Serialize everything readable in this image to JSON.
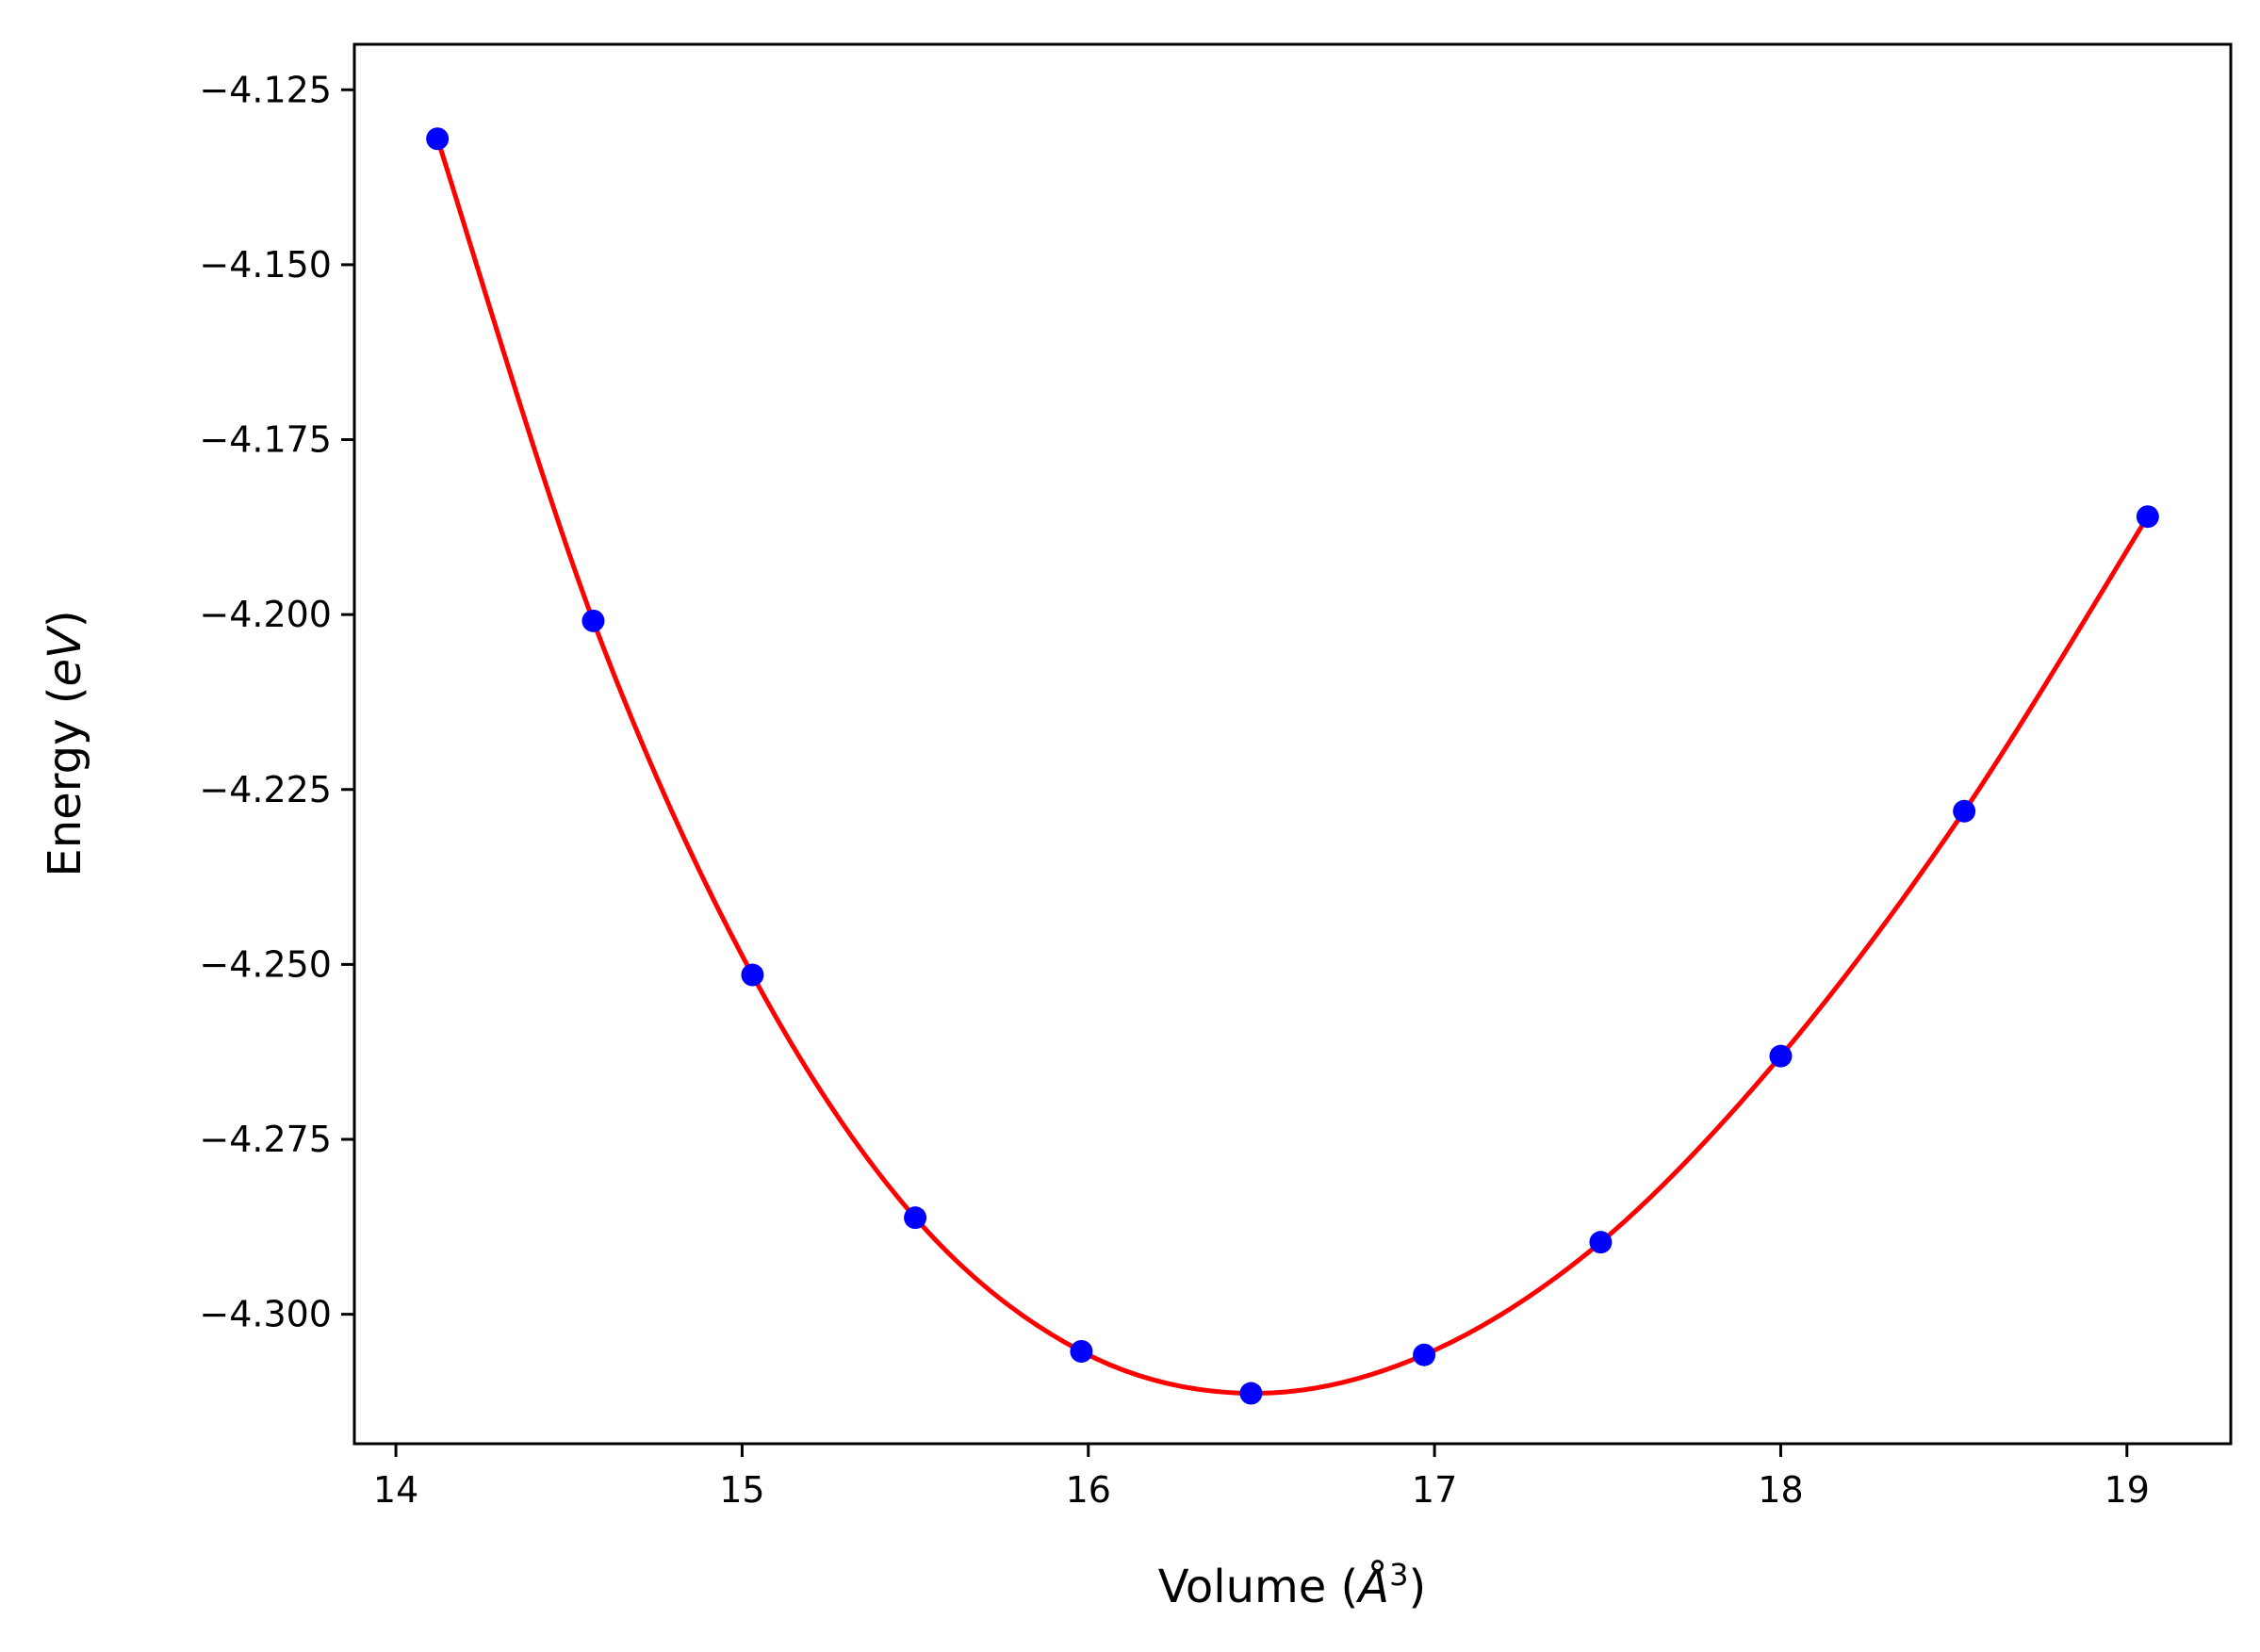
{
  "chart_data": {
    "type": "scatter",
    "title": "",
    "xlabel": {
      "prefix": "Volume (",
      "symbol": "Å",
      "exponent": "3",
      "suffix": ")"
    },
    "ylabel": {
      "prefix": "Energy (",
      "symbol": "eV",
      "suffix": ")"
    },
    "xlim": [
      13.88,
      19.3
    ],
    "ylim": [
      -4.3185,
      -4.1185
    ],
    "xticks": [
      14,
      15,
      16,
      17,
      18,
      19
    ],
    "xtick_labels": [
      "14",
      "15",
      "16",
      "17",
      "18",
      "19"
    ],
    "yticks": [
      -4.125,
      -4.15,
      -4.175,
      -4.2,
      -4.225,
      -4.25,
      -4.275,
      -4.3
    ],
    "ytick_labels": [
      "−4.125",
      "−4.150",
      "−4.175",
      "−4.200",
      "−4.225",
      "−4.250",
      "−4.275",
      "−4.300"
    ],
    "grid": false,
    "series": [
      {
        "kind": "points",
        "color": "#0000ff",
        "x": [
          14.12,
          14.57,
          15.03,
          15.5,
          15.98,
          16.47,
          16.97,
          17.48,
          18.0,
          18.53,
          19.06
        ],
        "y": [
          -4.132,
          -4.2009,
          -4.2515,
          -4.2862,
          -4.3053,
          -4.3113,
          -4.3058,
          -4.2897,
          -4.2631,
          -4.2281,
          -4.186
        ]
      },
      {
        "kind": "fit",
        "color": "#ff0000",
        "x": [
          14.12,
          14.57,
          15.03,
          15.5,
          15.98,
          16.47,
          16.97,
          17.48,
          18.0,
          18.53,
          19.06
        ],
        "y": [
          -4.132,
          -4.2009,
          -4.2515,
          -4.2862,
          -4.3053,
          -4.3113,
          -4.3058,
          -4.2897,
          -4.2631,
          -4.2281,
          -4.186
        ]
      }
    ]
  }
}
